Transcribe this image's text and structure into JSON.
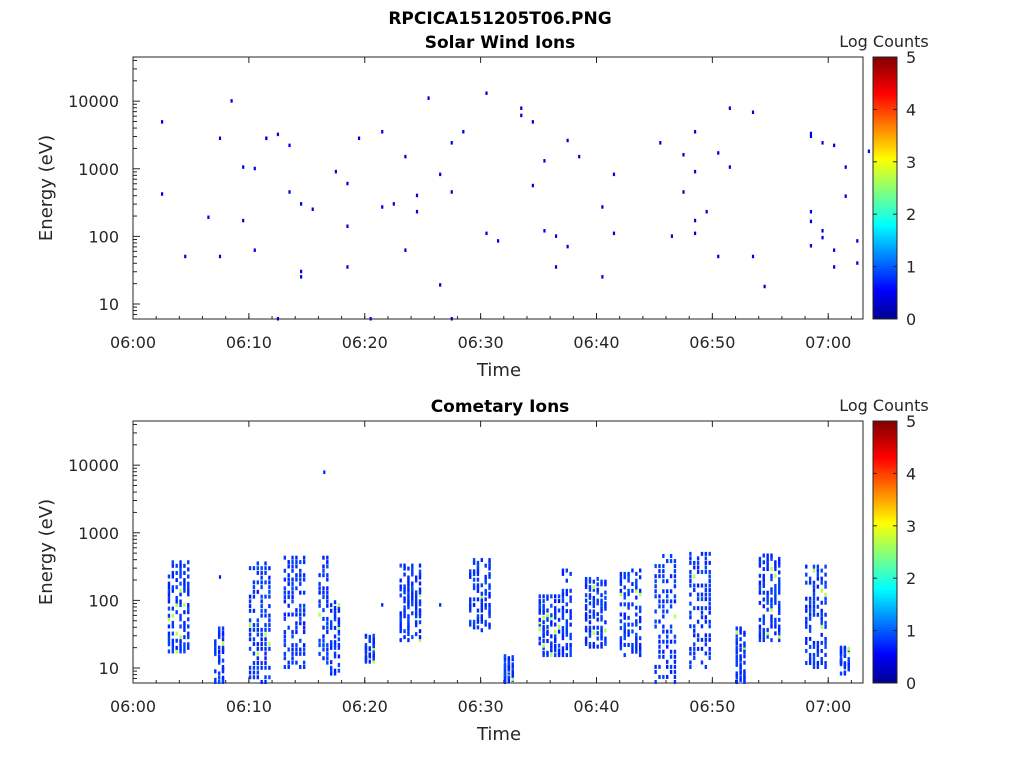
{
  "figure": {
    "main_title": "RPCICA151205T06.PNG"
  },
  "colorbar": {
    "label": "Log Counts",
    "range": [
      0,
      5
    ],
    "ticks": [
      "0",
      "1",
      "2",
      "3",
      "4",
      "5"
    ],
    "colormap": "jet"
  },
  "chart_data": [
    {
      "type": "heatmap",
      "title": "Solar Wind Ions",
      "xlabel": "Time",
      "ylabel": "Energy (eV)",
      "xscale": "time",
      "yscale": "log",
      "xlim": [
        "06:00",
        "07:03"
      ],
      "ylim": [
        6,
        45000
      ],
      "xticks": [
        "06:00",
        "06:10",
        "06:20",
        "06:30",
        "06:40",
        "06:50",
        "07:00"
      ],
      "yticks": [
        "10",
        "100",
        "1000",
        "10000"
      ],
      "grid": false,
      "color_value": 0.1,
      "points": [
        [
          "06:02",
          4900
        ],
        [
          "06:02",
          420
        ],
        [
          "06:04",
          50
        ],
        [
          "06:06",
          190
        ],
        [
          "06:07",
          2800
        ],
        [
          "06:07",
          50
        ],
        [
          "06:08",
          10000
        ],
        [
          "06:09",
          1050
        ],
        [
          "06:09",
          170
        ],
        [
          "06:10",
          1000
        ],
        [
          "06:10",
          62
        ],
        [
          "06:11",
          2800
        ],
        [
          "06:11",
          2800
        ],
        [
          "06:12",
          3200
        ],
        [
          "06:12",
          6
        ],
        [
          "06:13",
          450
        ],
        [
          "06:13",
          2200
        ],
        [
          "06:14",
          25
        ],
        [
          "06:14",
          300
        ],
        [
          "06:14",
          30
        ],
        [
          "06:15",
          250
        ],
        [
          "06:17",
          900
        ],
        [
          "06:18",
          600
        ],
        [
          "06:18",
          140
        ],
        [
          "06:18",
          35
        ],
        [
          "06:19",
          2800
        ],
        [
          "06:20",
          6
        ],
        [
          "06:21",
          3500
        ],
        [
          "06:21",
          270
        ],
        [
          "06:22",
          300
        ],
        [
          "06:23",
          62
        ],
        [
          "06:23",
          1500
        ],
        [
          "06:24",
          400
        ],
        [
          "06:24",
          230
        ],
        [
          "06:25",
          11000
        ],
        [
          "06:26",
          19
        ],
        [
          "06:26",
          820
        ],
        [
          "06:27",
          2400
        ],
        [
          "06:27",
          450
        ],
        [
          "06:27",
          6
        ],
        [
          "06:28",
          3500
        ],
        [
          "06:30",
          110
        ],
        [
          "06:30",
          13000
        ],
        [
          "06:31",
          85
        ],
        [
          "06:33",
          7800
        ],
        [
          "06:33",
          6100
        ],
        [
          "06:34",
          4900
        ],
        [
          "06:34",
          560
        ],
        [
          "06:35",
          1300
        ],
        [
          "06:35",
          120
        ],
        [
          "06:36",
          35
        ],
        [
          "06:36",
          100
        ],
        [
          "06:37",
          70
        ],
        [
          "06:37",
          2600
        ],
        [
          "06:38",
          1500
        ],
        [
          "06:40",
          25
        ],
        [
          "06:40",
          270
        ],
        [
          "06:41",
          110
        ],
        [
          "06:41",
          820
        ],
        [
          "06:45",
          2400
        ],
        [
          "06:46",
          100
        ],
        [
          "06:47",
          450
        ],
        [
          "06:47",
          1600
        ],
        [
          "06:48",
          900
        ],
        [
          "06:48",
          110
        ],
        [
          "06:48",
          170
        ],
        [
          "06:48",
          3500
        ],
        [
          "06:49",
          230
        ],
        [
          "06:50",
          1700
        ],
        [
          "06:50",
          50
        ],
        [
          "06:51",
          1050
        ],
        [
          "06:51",
          7800
        ],
        [
          "06:53",
          6800
        ],
        [
          "06:53",
          50
        ],
        [
          "06:54",
          18
        ],
        [
          "06:58",
          3000
        ],
        [
          "06:58",
          3300
        ],
        [
          "06:58",
          230
        ],
        [
          "06:58",
          165
        ],
        [
          "06:58",
          72
        ],
        [
          "06:59",
          2400
        ],
        [
          "06:59",
          95
        ],
        [
          "06:59",
          120
        ],
        [
          "07:00",
          2200
        ],
        [
          "07:00",
          35
        ],
        [
          "07:00",
          62
        ],
        [
          "07:01",
          1050
        ],
        [
          "07:01",
          390
        ],
        [
          "07:02",
          85
        ],
        [
          "07:02",
          40
        ],
        [
          "07:03",
          1800
        ]
      ]
    },
    {
      "type": "heatmap",
      "title": "Cometary Ions",
      "xlabel": "Time",
      "ylabel": "Energy (eV)",
      "xscale": "time",
      "yscale": "log",
      "xlim": [
        "06:00",
        "07:03"
      ],
      "ylim": [
        6,
        45000
      ],
      "xticks": [
        "06:00",
        "06:10",
        "06:20",
        "06:30",
        "06:40",
        "06:50",
        "07:00"
      ],
      "yticks": [
        "10",
        "100",
        "1000",
        "10000"
      ],
      "grid": false,
      "color_value": 0.15,
      "color_value_max": 1.0,
      "isolated_points": [
        [
          "06:16",
          7800
        ],
        [
          "06:21",
          85
        ],
        [
          "06:26",
          85
        ],
        [
          "06:07",
          220
        ]
      ],
      "bursts": [
        {
          "time": "06:03",
          "e_min": 17,
          "e_max": 400,
          "width_min": 2
        },
        {
          "time": "06:07",
          "e_min": 6,
          "e_max": 40,
          "width_min": 1
        },
        {
          "time": "06:10",
          "e_min": 6,
          "e_max": 400,
          "width_min": 2
        },
        {
          "time": "06:13",
          "e_min": 10,
          "e_max": 480,
          "width_min": 2
        },
        {
          "time": "06:16",
          "e_min": 10,
          "e_max": 480,
          "width_min": 1
        },
        {
          "time": "06:17",
          "e_min": 8,
          "e_max": 100,
          "width_min": 1
        },
        {
          "time": "06:20",
          "e_min": 12,
          "e_max": 30,
          "width_min": 1
        },
        {
          "time": "06:23",
          "e_min": 25,
          "e_max": 350,
          "width_min": 2
        },
        {
          "time": "06:29",
          "e_min": 35,
          "e_max": 420,
          "width_min": 2
        },
        {
          "time": "06:32",
          "e_min": 6,
          "e_max": 15,
          "width_min": 1
        },
        {
          "time": "06:35",
          "e_min": 15,
          "e_max": 120,
          "width_min": 2
        },
        {
          "time": "06:37",
          "e_min": 15,
          "e_max": 300,
          "width_min": 1
        },
        {
          "time": "06:39",
          "e_min": 20,
          "e_max": 220,
          "width_min": 2
        },
        {
          "time": "06:42",
          "e_min": 15,
          "e_max": 300,
          "width_min": 2
        },
        {
          "time": "06:45",
          "e_min": 6,
          "e_max": 520,
          "width_min": 2
        },
        {
          "time": "06:48",
          "e_min": 10,
          "e_max": 550,
          "width_min": 2
        },
        {
          "time": "06:52",
          "e_min": 6,
          "e_max": 40,
          "width_min": 1
        },
        {
          "time": "06:54",
          "e_min": 25,
          "e_max": 500,
          "width_min": 2
        },
        {
          "time": "06:58",
          "e_min": 10,
          "e_max": 350,
          "width_min": 2
        },
        {
          "time": "07:01",
          "e_min": 8,
          "e_max": 20,
          "width_min": 1
        }
      ]
    }
  ]
}
